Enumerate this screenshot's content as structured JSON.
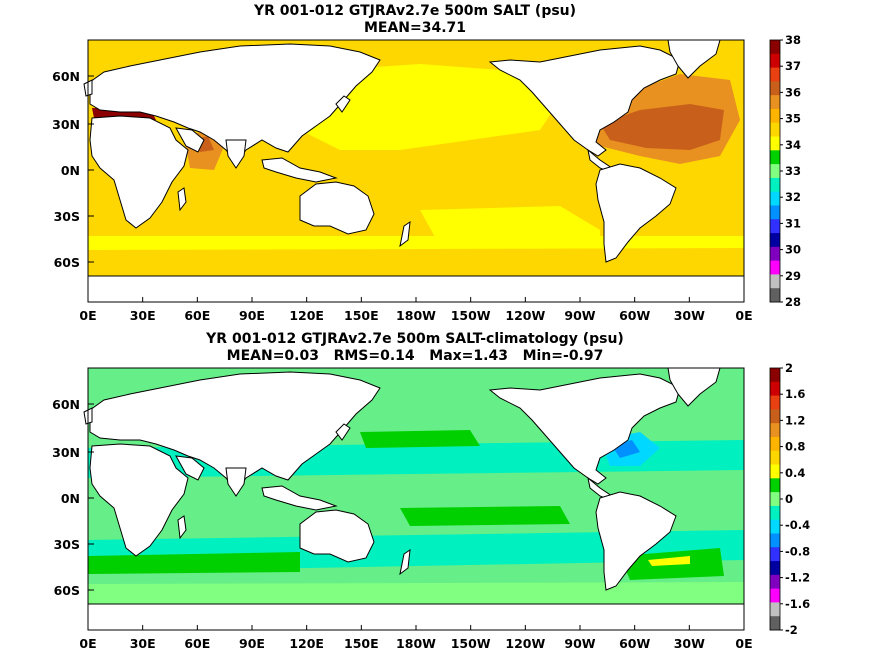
{
  "panels": [
    {
      "id": "salt",
      "title_line1": "YR 001-012 GTJRAv2.7e 500m SALT (psu)",
      "title_line2": "MEAN=34.71",
      "lat_labels": [
        "60N",
        "30N",
        "0N",
        "30S",
        "60S"
      ],
      "lon_labels": [
        "0E",
        "30E",
        "60E",
        "90E",
        "120E",
        "150E",
        "180W",
        "150W",
        "120W",
        "90W",
        "60W",
        "30W",
        "0E"
      ],
      "colorbar": {
        "labels": [
          "38",
          "37",
          "36",
          "35",
          "34",
          "33",
          "32",
          "31",
          "30",
          "29",
          "28"
        ],
        "colors_top_to_bottom": [
          "#8b0000",
          "#cc0000",
          "#e84010",
          "#c8601c",
          "#e89020",
          "#ffb400",
          "#ffd700",
          "#ffff00",
          "#00d000",
          "#80ff80",
          "#00f0c0",
          "#00d8ff",
          "#0090ff",
          "#3030ff",
          "#0000a0",
          "#8000c0",
          "#ff00ff",
          "#c0c0c0",
          "#606060"
        ]
      },
      "ocean_color": "#ffd700"
    },
    {
      "id": "salt_minus_clim",
      "title_line1": "YR 001-012 GTJRAv2.7e 500m SALT-climatology (psu)",
      "title_line2": "MEAN=0.03   RMS=0.14   Max=1.43   Min=-0.97",
      "lat_labels": [
        "60N",
        "30N",
        "0N",
        "30S",
        "60S"
      ],
      "lon_labels": [
        "0E",
        "30E",
        "60E",
        "90E",
        "120E",
        "150E",
        "180W",
        "150W",
        "120W",
        "90W",
        "60W",
        "30W",
        "0E"
      ],
      "colorbar": {
        "labels": [
          "2",
          "1.6",
          "1.2",
          "0.8",
          "0.4",
          "0",
          "-0.4",
          "-0.8",
          "-1.2",
          "-1.6",
          "-2"
        ],
        "colors_top_to_bottom": [
          "#8b0000",
          "#cc0000",
          "#e84010",
          "#c8601c",
          "#e89020",
          "#ffb400",
          "#ffd700",
          "#ffff00",
          "#00d000",
          "#80ff80",
          "#00f0c0",
          "#00d8ff",
          "#0090ff",
          "#3030ff",
          "#0000a0",
          "#8000c0",
          "#ff00ff",
          "#c0c0c0",
          "#606060"
        ]
      },
      "ocean_color": "#66ee88"
    }
  ]
}
